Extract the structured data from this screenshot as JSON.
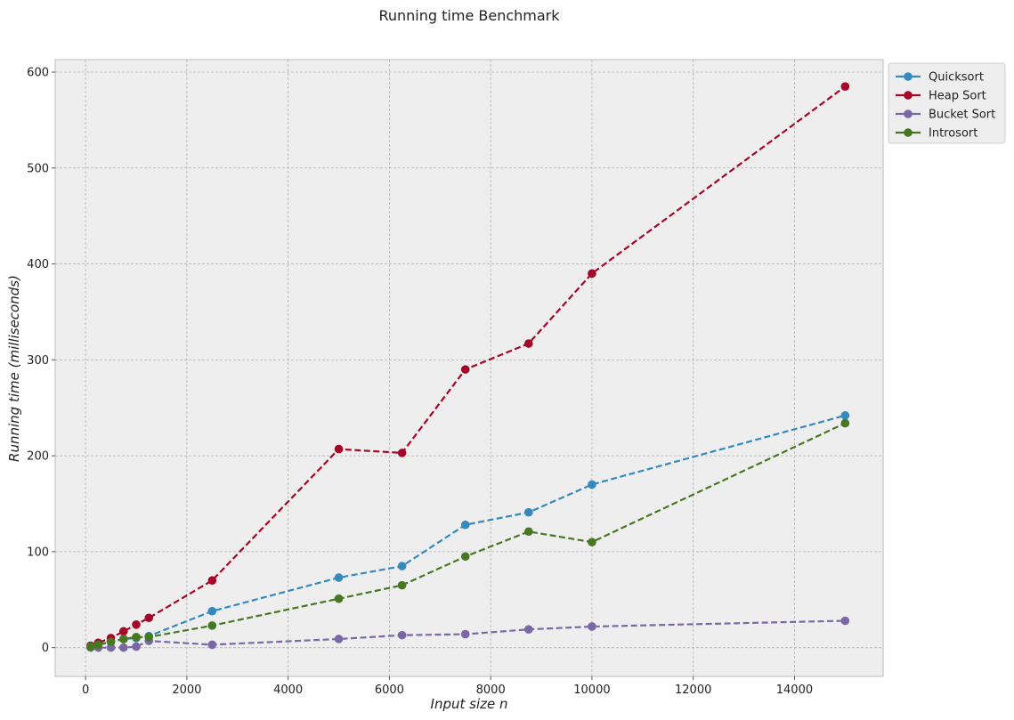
{
  "chart_data": {
    "type": "line",
    "title": "Running time Benchmark",
    "xlabel": "Input size n",
    "ylabel": "Running time (milliseconds)",
    "xlim": [
      -600,
      15750
    ],
    "ylim": [
      -30,
      613
    ],
    "xticks": [
      0,
      2000,
      4000,
      6000,
      8000,
      10000,
      12000,
      14000
    ],
    "yticks": [
      0,
      100,
      200,
      300,
      400,
      500,
      600
    ],
    "grid": true,
    "legend_position": "outside top-right",
    "line_style": "dashed with circle markers",
    "x": [
      100,
      250,
      500,
      750,
      1000,
      1250,
      2500,
      5000,
      6250,
      7500,
      8750,
      10000,
      15000
    ],
    "series": [
      {
        "name": "Quicksort",
        "color": "#348ABD",
        "values": [
          1,
          3,
          6,
          9,
          10,
          12,
          38,
          73,
          85,
          128,
          141,
          170,
          242
        ]
      },
      {
        "name": "Heap Sort",
        "color": "#A60628",
        "values": [
          2,
          5,
          10,
          17,
          24,
          31,
          70,
          207,
          203,
          290,
          317,
          390,
          585
        ]
      },
      {
        "name": "Bucket Sort",
        "color": "#7A68A6",
        "values": [
          0,
          0,
          0,
          0,
          1,
          7,
          3,
          9,
          13,
          14,
          19,
          22,
          28
        ]
      },
      {
        "name": "Introsort",
        "color": "#467821",
        "values": [
          1,
          3,
          6,
          9,
          11,
          11,
          23,
          51,
          65,
          95,
          121,
          110,
          234
        ]
      }
    ]
  }
}
